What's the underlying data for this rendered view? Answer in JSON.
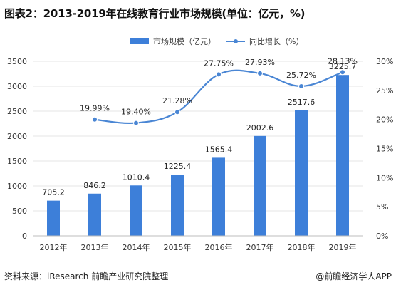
{
  "header": {
    "title": "图表2：2013-2019年在线教育行业市场规模(单位：亿元，%)"
  },
  "footer": {
    "source": "资料来源：iResearch 前瞻产业研究院整理",
    "credit": "@前瞻经济学人APP"
  },
  "colors": {
    "bar": "#3d7fd9",
    "line": "#4a86d4",
    "grid": "#e6e6e6"
  },
  "chart_data": {
    "type": "bar+line",
    "categories": [
      "2012年",
      "2013年",
      "2014年",
      "2015年",
      "2016年",
      "2017年",
      "2018年",
      "2019年"
    ],
    "series": [
      {
        "name": "市场规模（亿元）",
        "type": "bar",
        "axis": "left",
        "values": [
          705.2,
          846.2,
          1010.4,
          1225.4,
          1565.4,
          2002.6,
          2517.6,
          3225.7
        ],
        "labels": [
          "705.2",
          "846.2",
          "1010.4",
          "1225.4",
          "1565.4",
          "2002.6",
          "2517.6",
          "3225.7"
        ]
      },
      {
        "name": "同比增长（%）",
        "type": "line",
        "axis": "right",
        "values": [
          null,
          19.99,
          19.4,
          21.28,
          27.75,
          27.93,
          25.72,
          28.13
        ],
        "labels": [
          "",
          "19.99%",
          "19.40%",
          "21.28%",
          "27.75%",
          "27.93%",
          "25.72%",
          "28.13%"
        ]
      }
    ],
    "y_left": {
      "min": 0,
      "max": 3500,
      "ticks": [
        0,
        500,
        1000,
        1500,
        2000,
        2500,
        3000,
        3500
      ],
      "tick_labels": [
        "0",
        "500",
        "1000",
        "1500",
        "2000",
        "2500",
        "3000",
        "3500"
      ]
    },
    "y_right": {
      "min": 0,
      "max": 30,
      "ticks": [
        0,
        5,
        10,
        15,
        20,
        25,
        30
      ],
      "tick_labels": [
        "0%",
        "5%",
        "10%",
        "15%",
        "20%",
        "25%",
        "30%"
      ]
    },
    "grid": true,
    "legend_position": "top-center"
  }
}
